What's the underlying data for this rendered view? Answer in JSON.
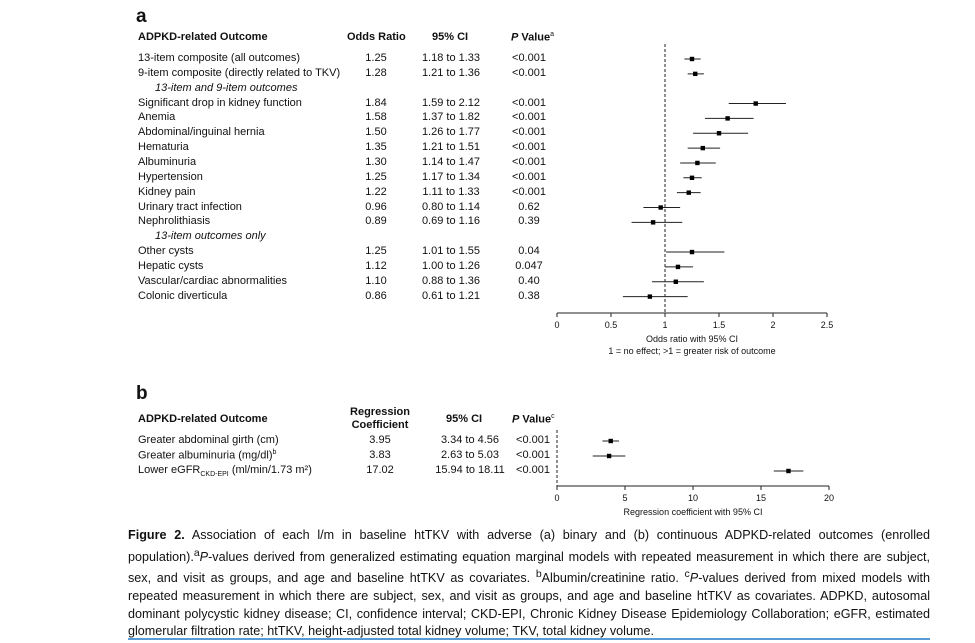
{
  "panel_a": {
    "label": "a",
    "headers": {
      "outcome": "ADPKD-related Outcome",
      "or": "Odds Ratio",
      "ci": "95% CI",
      "p_main": "P",
      "p_suffix": " Value",
      "p_sup": "a"
    },
    "rows": [
      {
        "outcome": "13-item composite (all outcomes)",
        "or": "1.25",
        "ci": "1.18 to 1.33",
        "p": "<0.001"
      },
      {
        "outcome": "9-item composite (directly related to TKV)",
        "or": "1.28",
        "ci": "1.21 to 1.36",
        "p": "<0.001"
      },
      {
        "section": "13-item and 9-item outcomes"
      },
      {
        "outcome": "Significant drop in kidney function",
        "or": "1.84",
        "ci": "1.59 to 2.12",
        "p": "<0.001"
      },
      {
        "outcome": "Anemia",
        "or": "1.58",
        "ci": "1.37 to 1.82",
        "p": "<0.001"
      },
      {
        "outcome": "Abdominal/inguinal hernia",
        "or": "1.50",
        "ci": "1.26 to 1.77",
        "p": "<0.001"
      },
      {
        "outcome": "Hematuria",
        "or": "1.35",
        "ci": "1.21 to 1.51",
        "p": "<0.001"
      },
      {
        "outcome": "Albuminuria",
        "or": "1.30",
        "ci": "1.14 to 1.47",
        "p": "<0.001"
      },
      {
        "outcome": "Hypertension",
        "or": "1.25",
        "ci": "1.17 to 1.34",
        "p": "<0.001"
      },
      {
        "outcome": "Kidney pain",
        "or": "1.22",
        "ci": "1.11 to 1.33",
        "p": "<0.001"
      },
      {
        "outcome": "Urinary tract infection",
        "or": "0.96",
        "ci": "0.80 to 1.14",
        "p": "0.62"
      },
      {
        "outcome": "Nephrolithiasis",
        "or": "0.89",
        "ci": "0.69 to 1.16",
        "p": "0.39"
      },
      {
        "section": "13-item outcomes only"
      },
      {
        "outcome": "Other cysts",
        "or": "1.25",
        "ci": "1.01 to 1.55",
        "p": "0.04"
      },
      {
        "outcome": "Hepatic cysts",
        "or": "1.12",
        "ci": "1.00 to 1.26",
        "p": "0.047"
      },
      {
        "outcome": "Vascular/cardiac abnormalities",
        "or": "1.10",
        "ci": "0.88 to 1.36",
        "p": "0.40"
      },
      {
        "outcome": "Colonic diverticula",
        "or": "0.86",
        "ci": "0.61 to 1.21",
        "p": "0.38"
      }
    ]
  },
  "panel_b": {
    "label": "b",
    "headers": {
      "outcome": "ADPKD-related Outcome",
      "coef_line1": "Regression",
      "coef_line2": "Coefficient",
      "ci": "95% CI",
      "p_main": "P",
      "p_suffix": " Value",
      "p_sup": "c"
    },
    "rows": [
      {
        "outcome": "Greater abdominal girth (cm)",
        "sup": "",
        "sub": "",
        "outcome_tail": "",
        "coef": "3.95",
        "ci": "3.34 to 4.56",
        "p": "<0.001"
      },
      {
        "outcome": "Greater albuminuria (mg/dl)",
        "sup": "b",
        "sub": "",
        "outcome_tail": "",
        "coef": "3.83",
        "ci": "2.63 to 5.03",
        "p": "<0.001"
      },
      {
        "outcome": "Lower eGFR",
        "sup": "",
        "sub": "CKD-EPI",
        "outcome_tail": " (ml/min/1.73 m²)",
        "coef": "17.02",
        "ci": "15.94 to 18.11",
        "p": "<0.001"
      }
    ]
  },
  "chart_data": [
    {
      "type": "scatter",
      "subtype": "forest",
      "xlabel": "Odds ratio with 95% CI",
      "xlabel_note": "1 = no effect; >1 = greater risk of outcome",
      "xlim": [
        0,
        2.5
      ],
      "xticks": [
        0,
        0.5,
        1,
        1.5,
        2,
        2.5
      ],
      "xtick_labels": [
        "0",
        "0.5",
        "1",
        "1.5",
        "2",
        "2.5"
      ],
      "reference_line": 1,
      "points": [
        {
          "row": 0,
          "est": 1.25,
          "lo": 1.18,
          "hi": 1.33
        },
        {
          "row": 1,
          "est": 1.28,
          "lo": 1.21,
          "hi": 1.36
        },
        {
          "row": 3,
          "est": 1.84,
          "lo": 1.59,
          "hi": 2.12
        },
        {
          "row": 4,
          "est": 1.58,
          "lo": 1.37,
          "hi": 1.82
        },
        {
          "row": 5,
          "est": 1.5,
          "lo": 1.26,
          "hi": 1.77
        },
        {
          "row": 6,
          "est": 1.35,
          "lo": 1.21,
          "hi": 1.51
        },
        {
          "row": 7,
          "est": 1.3,
          "lo": 1.14,
          "hi": 1.47
        },
        {
          "row": 8,
          "est": 1.25,
          "lo": 1.17,
          "hi": 1.34
        },
        {
          "row": 9,
          "est": 1.22,
          "lo": 1.11,
          "hi": 1.33
        },
        {
          "row": 10,
          "est": 0.96,
          "lo": 0.8,
          "hi": 1.14
        },
        {
          "row": 11,
          "est": 0.89,
          "lo": 0.69,
          "hi": 1.16
        },
        {
          "row": 13,
          "est": 1.25,
          "lo": 1.01,
          "hi": 1.55
        },
        {
          "row": 14,
          "est": 1.12,
          "lo": 1.0,
          "hi": 1.26
        },
        {
          "row": 15,
          "est": 1.1,
          "lo": 0.88,
          "hi": 1.36
        },
        {
          "row": 16,
          "est": 0.86,
          "lo": 0.61,
          "hi": 1.21
        }
      ]
    },
    {
      "type": "scatter",
      "subtype": "forest",
      "xlabel": "Regression coefficient with 95% CI",
      "xlim": [
        0,
        20
      ],
      "xticks": [
        0,
        5,
        10,
        15,
        20
      ],
      "xtick_labels": [
        "0",
        "5",
        "10",
        "15",
        "20"
      ],
      "reference_line": 0,
      "points": [
        {
          "row": 0,
          "est": 3.95,
          "lo": 3.34,
          "hi": 4.56
        },
        {
          "row": 1,
          "est": 3.83,
          "lo": 2.63,
          "hi": 5.03
        },
        {
          "row": 2,
          "est": 17.02,
          "lo": 15.94,
          "hi": 18.11
        }
      ]
    }
  ],
  "caption": {
    "figure_label": "Figure 2.",
    "title": " Association of each l/m in baseline htTKV with adverse (a) binary and (b) continuous ADPKD-related outcomes (enrolled population).",
    "fn_a_sup": "a",
    "fn_a_p": "P",
    "fn_a_text": "-values derived from generalized estimating equation marginal models with repeated measurement in which there are subject, sex, and visit as groups, and age and baseline htTKV as covariates. ",
    "fn_b_sup": "b",
    "fn_b_text": "Albumin/creatinine ratio. ",
    "fn_c_sup": "c",
    "fn_c_p": "P",
    "fn_c_text": "-values derived from mixed models with repeated measurement in which there are subject, sex, and visit as groups, and age and baseline htTKV as covariates. ADPKD, autosomal dominant polycystic kidney disease; CI, confidence interval; CKD-EPI, Chronic Kidney Disease Epidemiology Collaboration; eGFR, estimated glomerular filtration rate; htTKV, height-adjusted total kidney volume; TKV, total kidney volume."
  }
}
